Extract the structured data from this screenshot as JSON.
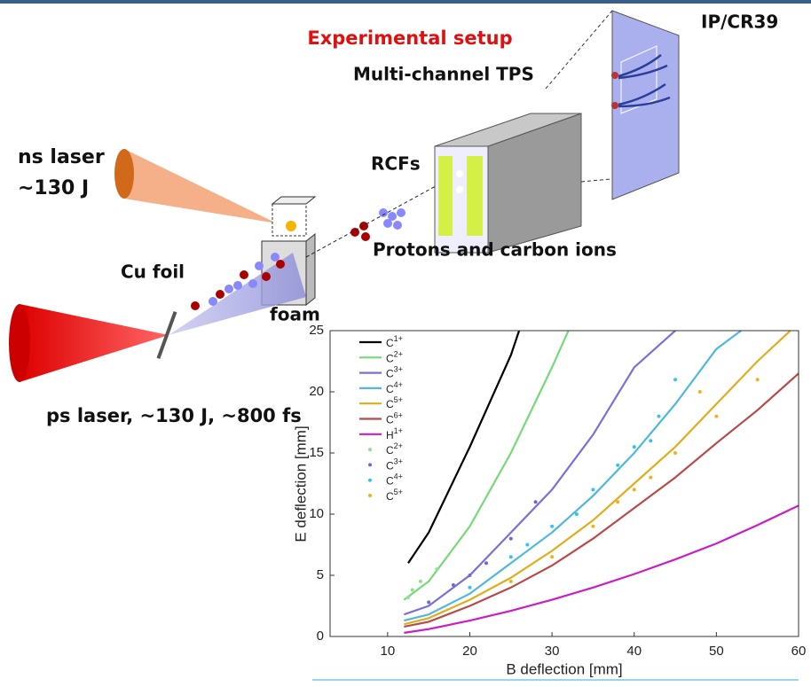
{
  "diagram": {
    "title": "Experimental setup",
    "labels": {
      "tps": "Multi-channel TPS",
      "detector": "IP/CR39",
      "ns_laser": "ns laser",
      "ns_energy": "~130 J",
      "rcf": "RCFs",
      "ions": "Protons and carbon ions",
      "foil": "Cu foil",
      "foam": "foam",
      "ps_laser": "ps laser, ~130 J, ~800 fs"
    }
  },
  "chart_data": {
    "type": "line",
    "x_label": "B deflection [mm]",
    "y_label": "E deflection [mm]",
    "xlim": [
      3,
      60
    ],
    "xticks": [
      10,
      20,
      30,
      40,
      50,
      60
    ],
    "ylim": [
      0,
      25
    ],
    "yticks": [
      0,
      5,
      10,
      15,
      20,
      25
    ],
    "legend": "upper left",
    "series": [
      {
        "name": "C1+",
        "mode": "line",
        "color": "#000000",
        "x": [
          12.5,
          15,
          20,
          25,
          26
        ],
        "values": [
          6,
          8.5,
          15.5,
          23,
          25
        ]
      },
      {
        "name": "C2+",
        "mode": "line",
        "color": "#77d977",
        "x": [
          12,
          15,
          20,
          25,
          30,
          32
        ],
        "values": [
          3,
          4.5,
          9,
          15,
          22,
          25
        ]
      },
      {
        "name": "C3+",
        "mode": "line",
        "color": "#7b6fd8",
        "x": [
          12,
          15,
          20,
          25,
          30,
          35,
          40,
          45
        ],
        "values": [
          1.8,
          2.5,
          5,
          8.5,
          12,
          16.5,
          22,
          25
        ]
      },
      {
        "name": "C4+",
        "mode": "line",
        "color": "#4fb8dc",
        "x": [
          12,
          15,
          20,
          25,
          30,
          35,
          40,
          45,
          50,
          53
        ],
        "values": [
          1.3,
          1.8,
          3.5,
          6,
          8.5,
          11.5,
          15,
          19,
          23.5,
          25
        ]
      },
      {
        "name": "C5+",
        "mode": "line",
        "color": "#e0ad1e",
        "x": [
          12,
          15,
          20,
          25,
          30,
          35,
          40,
          45,
          50,
          55,
          59
        ],
        "values": [
          1,
          1.5,
          3,
          4.8,
          7,
          9.5,
          12.5,
          15.5,
          19,
          22.5,
          25
        ]
      },
      {
        "name": "C6+",
        "mode": "line",
        "color": "#b84a4a",
        "x": [
          12,
          15,
          20,
          25,
          30,
          35,
          40,
          45,
          50,
          55,
          60
        ],
        "values": [
          0.8,
          1.2,
          2.5,
          4,
          5.8,
          8,
          10.5,
          13,
          15.8,
          18.5,
          21.5
        ]
      },
      {
        "name": "H1+",
        "mode": "line",
        "color": "#c81ec8",
        "x": [
          12,
          15,
          20,
          25,
          30,
          35,
          40,
          45,
          50,
          55,
          60
        ],
        "values": [
          0.3,
          0.6,
          1.3,
          2.1,
          3,
          4,
          5.1,
          6.3,
          7.6,
          9.1,
          10.7
        ]
      },
      {
        "name": "C2+",
        "mode": "points",
        "color": "#8ee08e",
        "x": [
          12.5,
          13,
          14,
          16
        ],
        "values": [
          3.2,
          3.8,
          4.5,
          5.5
        ]
      },
      {
        "name": "C3+",
        "mode": "points",
        "color": "#6a6ad6",
        "x": [
          15,
          18,
          20,
          22,
          25,
          28
        ],
        "values": [
          2.8,
          4.2,
          5,
          6,
          8,
          11
        ]
      },
      {
        "name": "C4+",
        "mode": "points",
        "color": "#33c4ee",
        "x": [
          20,
          25,
          27,
          30,
          33,
          35,
          38,
          40,
          42,
          43,
          45
        ],
        "values": [
          4,
          6.5,
          7.5,
          9,
          10,
          12,
          14,
          15.5,
          16,
          18,
          21
        ]
      },
      {
        "name": "C5+",
        "mode": "points",
        "color": "#f0b020",
        "x": [
          25,
          30,
          35,
          38,
          40,
          42,
          45,
          48,
          50,
          55
        ],
        "values": [
          4.5,
          6.5,
          9,
          11,
          12,
          13,
          15,
          20,
          18,
          21
        ]
      }
    ]
  }
}
